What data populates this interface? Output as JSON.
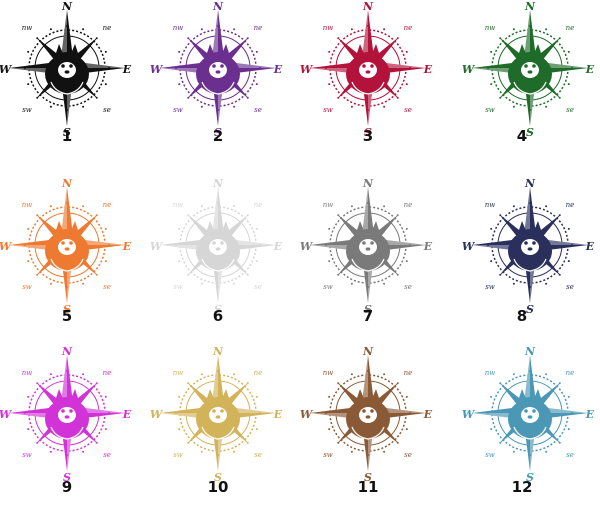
{
  "directions": {
    "n": "N",
    "s": "S",
    "e": "E",
    "w": "W",
    "nw": "nw",
    "ne": "ne",
    "sw": "sw",
    "se": "se"
  },
  "variants": [
    {
      "label": "1",
      "color": "#111111"
    },
    {
      "label": "2",
      "color": "#6b2f8f"
    },
    {
      "label": "3",
      "color": "#b3123a"
    },
    {
      "label": "4",
      "color": "#1f6b2a"
    },
    {
      "label": "5",
      "color": "#ee7a32"
    },
    {
      "label": "6",
      "color": "#d6d6d6"
    },
    {
      "label": "7",
      "color": "#7a7a7a"
    },
    {
      "label": "8",
      "color": "#2a2f5c"
    },
    {
      "label": "9",
      "color": "#d233d6"
    },
    {
      "label": "10",
      "color": "#d2b35a"
    },
    {
      "label": "11",
      "color": "#8a5a37"
    },
    {
      "label": "12",
      "color": "#4a97b6"
    }
  ]
}
